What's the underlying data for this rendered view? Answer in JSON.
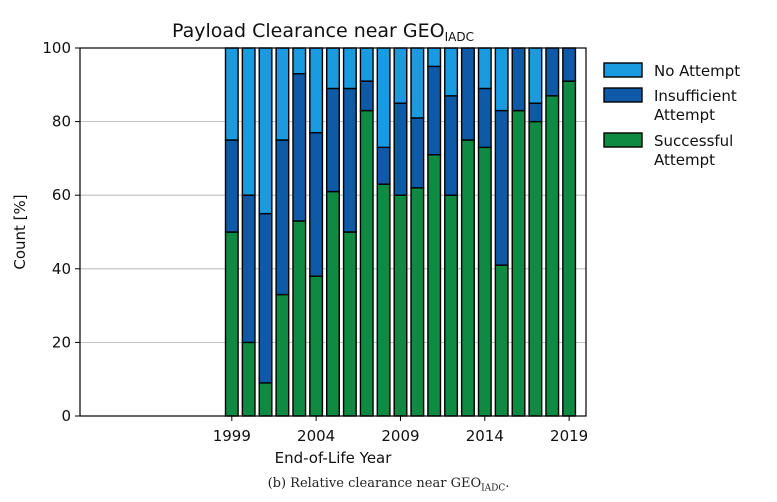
{
  "chart_data": {
    "type": "bar",
    "stacked": true,
    "title": "Payload Clearance near GEO",
    "title_subscript": "IADC",
    "xlabel": "End-of-Life Year",
    "ylabel": "Count [%]",
    "ylim": [
      0,
      100
    ],
    "xlim": [
      1990,
      2020
    ],
    "yticks": [
      0,
      20,
      40,
      60,
      80,
      100
    ],
    "xticks": [
      1999,
      2004,
      2009,
      2014,
      2019
    ],
    "grid": "horizontal",
    "legend_position": "right",
    "years": [
      1999,
      2000,
      2001,
      2002,
      2003,
      2004,
      2005,
      2006,
      2007,
      2008,
      2009,
      2010,
      2011,
      2012,
      2013,
      2014,
      2015,
      2016,
      2017,
      2018,
      2019
    ],
    "series": [
      {
        "name": "Successful Attempt",
        "color": "#0e8a43",
        "values": [
          50,
          20,
          9,
          33,
          53,
          38,
          61,
          50,
          83,
          63,
          60,
          62,
          71,
          60,
          75,
          73,
          41,
          83,
          80,
          87,
          91
        ]
      },
      {
        "name": "Insufficient Attempt",
        "color": "#0f5aa6",
        "values": [
          25,
          40,
          46,
          42,
          40,
          39,
          28,
          39,
          8,
          10,
          25,
          19,
          24,
          27,
          25,
          16,
          42,
          17,
          5,
          13,
          9
        ]
      },
      {
        "name": "No Attempt",
        "color": "#1a9be0",
        "values": [
          25,
          40,
          45,
          25,
          7,
          23,
          11,
          11,
          9,
          27,
          15,
          19,
          5,
          13,
          0,
          11,
          17,
          0,
          15,
          0,
          0
        ]
      }
    ],
    "legend": [
      {
        "lines": [
          "No Attempt"
        ],
        "color": "#1a9be0"
      },
      {
        "lines": [
          "Insufficient",
          "Attempt"
        ],
        "color": "#0f5aa6"
      },
      {
        "lines": [
          "Successful",
          "Attempt"
        ],
        "color": "#0e8a43"
      }
    ]
  },
  "caption": {
    "prefix": "(b) Relative clearance near GEO",
    "subscript": "IADC",
    "suffix": "."
  }
}
